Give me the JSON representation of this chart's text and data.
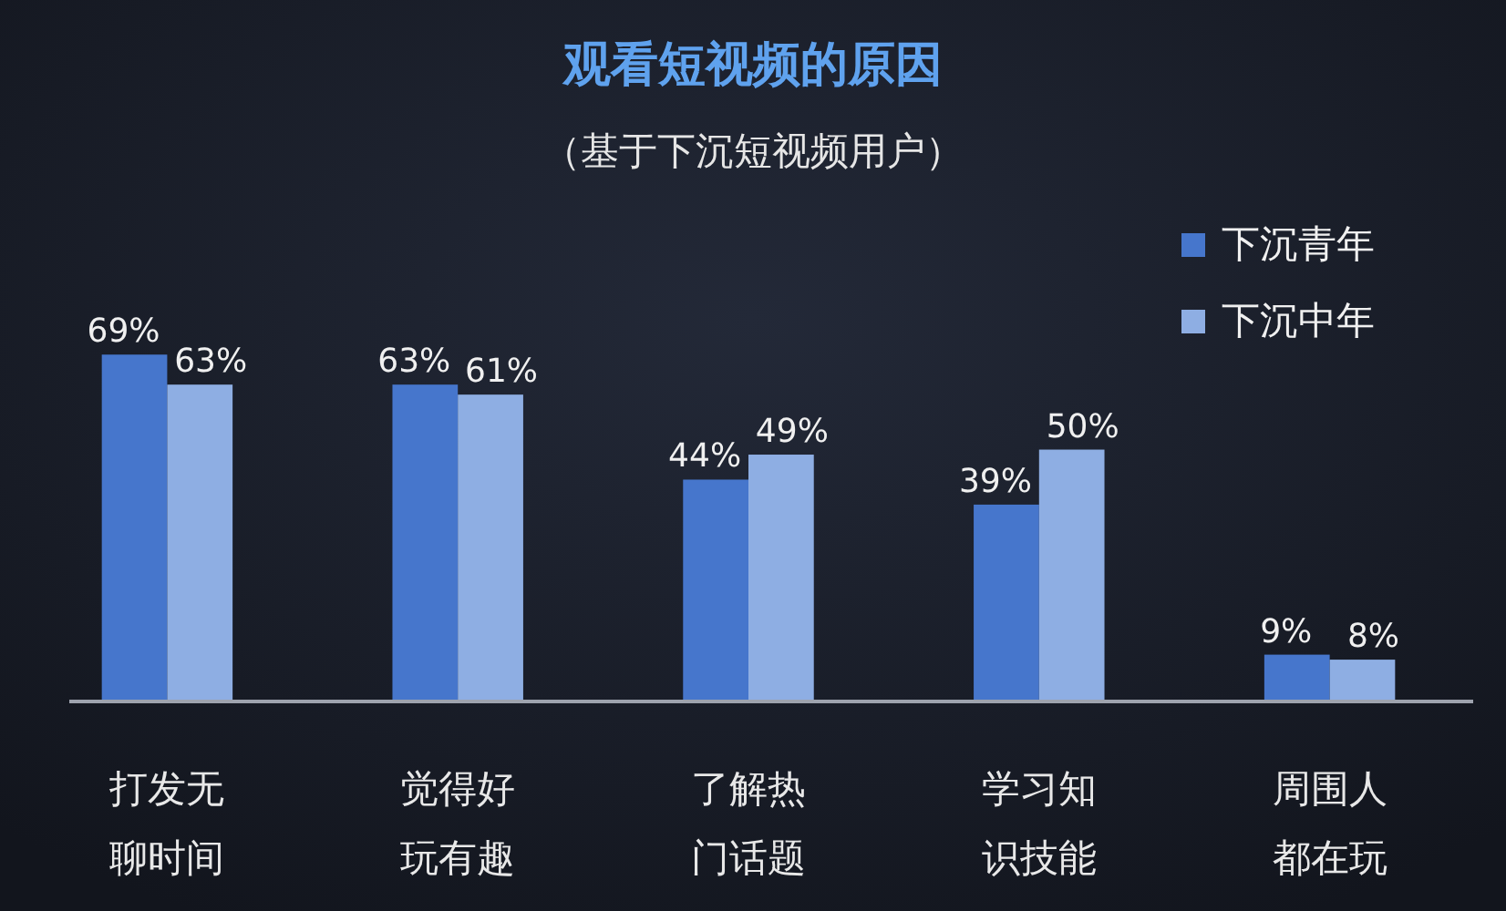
{
  "chart_data": {
    "type": "bar",
    "title": "观看短视频的原因",
    "subtitle": "（基于下沉短视频用户）",
    "categories": [
      "打发无聊时间",
      "觉得好玩有趣",
      "了解热门话题",
      "学习知识技能",
      "周围人都在玩"
    ],
    "series": [
      {
        "name": "下沉青年",
        "color": "#4676cc",
        "values": [
          69,
          63,
          44,
          39,
          9
        ],
        "value_labels": [
          "69%",
          "63%",
          "44%",
          "39%",
          "9%"
        ]
      },
      {
        "name": "下沉中年",
        "color": "#8eaee3",
        "values": [
          63,
          61,
          49,
          50,
          8
        ],
        "value_labels": [
          "63%",
          "61%",
          "49%",
          "50%",
          "8%"
        ]
      }
    ],
    "legend": "top right"
  }
}
